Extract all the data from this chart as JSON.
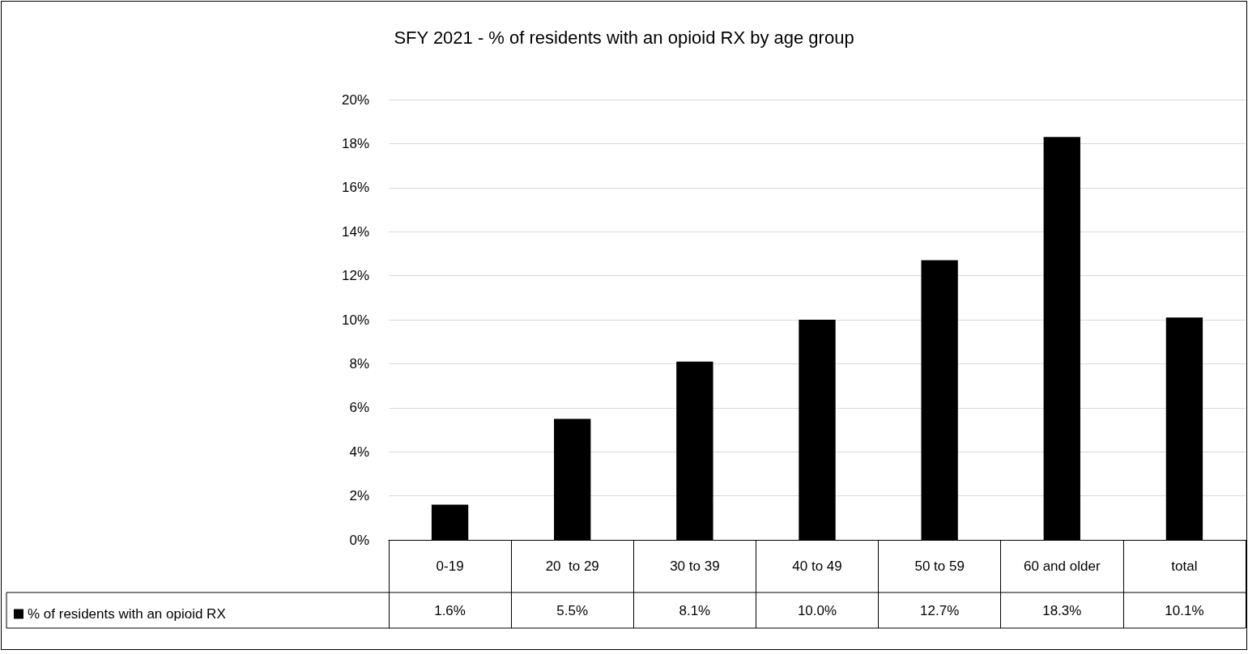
{
  "chart_data": {
    "type": "bar",
    "title": "SFY 2021 - % of residents with an opioid RX by age group",
    "categories": [
      "0-19",
      "20  to 29",
      "30 to 39",
      "40 to 49",
      "50 to 59",
      "60 and older",
      "total"
    ],
    "series": [
      {
        "name": "% of residents with an opioid RX",
        "color": "#000000",
        "values": [
          1.6,
          5.5,
          8.1,
          10.0,
          12.7,
          18.3,
          10.1
        ],
        "value_labels": [
          "1.6%",
          "5.5%",
          "8.1%",
          "10.0%",
          "12.7%",
          "18.3%",
          "10.1%"
        ]
      }
    ],
    "ylim": [
      0,
      20
    ],
    "yticks": [
      {
        "value": 0,
        "label": "0%"
      },
      {
        "value": 2,
        "label": "2%"
      },
      {
        "value": 4,
        "label": "4%"
      },
      {
        "value": 6,
        "label": "6%"
      },
      {
        "value": 8,
        "label": "8%"
      },
      {
        "value": 10,
        "label": "10%"
      },
      {
        "value": 12,
        "label": "12%"
      },
      {
        "value": 14,
        "label": "14%"
      },
      {
        "value": 16,
        "label": "16%"
      },
      {
        "value": 18,
        "label": "18%"
      },
      {
        "value": 20,
        "label": "20%"
      }
    ],
    "grid": "y",
    "legend": "bottom left"
  }
}
